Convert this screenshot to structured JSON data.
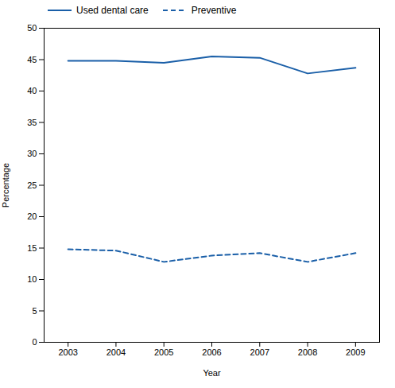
{
  "chart_data": {
    "type": "line",
    "x": [
      2003,
      2004,
      2005,
      2006,
      2007,
      2008,
      2009
    ],
    "series": [
      {
        "name": "Used dental care",
        "color": "#1a5fa8",
        "line_style": "solid",
        "values": [
          44.8,
          44.8,
          44.5,
          45.5,
          45.3,
          42.8,
          43.7
        ]
      },
      {
        "name": "Preventive",
        "color": "#1a5fa8",
        "line_style": "dashed",
        "values": [
          14.8,
          14.6,
          12.8,
          13.8,
          14.2,
          12.8,
          14.2
        ]
      }
    ],
    "xlabel": "Year",
    "ylabel": "Percentage",
    "xlim": [
      2002.5,
      2009.5
    ],
    "xticks": [
      2003,
      2004,
      2005,
      2006,
      2007,
      2008,
      2009
    ],
    "ylim": [
      0,
      50
    ],
    "yticks": [
      0,
      5,
      10,
      15,
      20,
      25,
      30,
      35,
      40,
      45,
      50
    ],
    "grid": false,
    "legend": "upper left"
  }
}
